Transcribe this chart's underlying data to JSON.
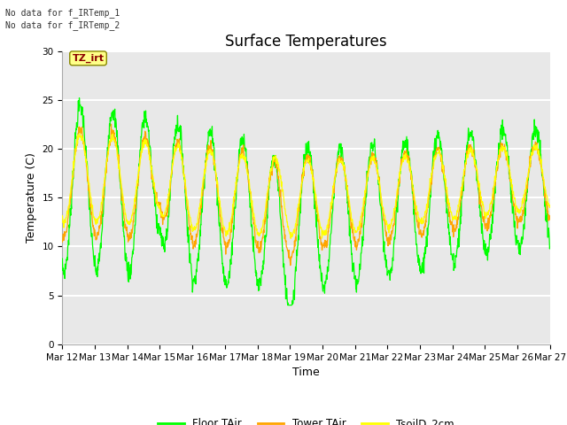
{
  "title": "Surface Temperatures",
  "xlabel": "Time",
  "ylabel": "Temperature (C)",
  "ylim": [
    0,
    30
  ],
  "yticks": [
    0,
    5,
    10,
    15,
    20,
    25,
    30
  ],
  "xticklabels": [
    "Mar 12",
    "Mar 13",
    "Mar 14",
    "Mar 15",
    "Mar 16",
    "Mar 17",
    "Mar 18",
    "Mar 19",
    "Mar 20",
    "Mar 21",
    "Mar 22",
    "Mar 23",
    "Mar 24",
    "Mar 25",
    "Mar 26",
    "Mar 27"
  ],
  "legend_labels": [
    "Floor TAir",
    "Tower TAir",
    "TsoilD_2cm"
  ],
  "line_colors": [
    "#00FF00",
    "#FFA500",
    "#FFFF00"
  ],
  "annotations": [
    "No data for f_IRTemp_1",
    "No data for f_IRTemp_2"
  ],
  "tz_irt_label": "TZ_irt",
  "background_color": "#e8e8e8",
  "fig_background": "#ffffff",
  "grid_color": "#ffffff",
  "title_fontsize": 12,
  "axis_fontsize": 9,
  "tick_fontsize": 7.5
}
